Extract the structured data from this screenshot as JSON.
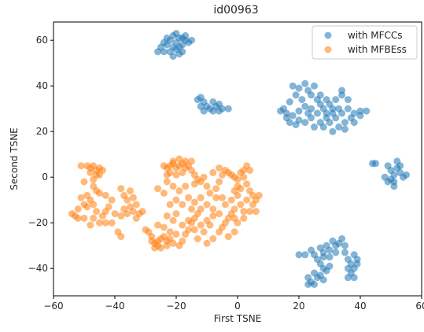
{
  "chart_data": {
    "type": "scatter",
    "title": "id00963",
    "xlabel": "First TSNE",
    "ylabel": "Second TSNE",
    "xlim": [
      -60,
      60
    ],
    "ylim": [
      -52,
      68
    ],
    "xticks": [
      -60,
      -40,
      -20,
      0,
      20,
      40,
      60
    ],
    "xtick_labels": [
      "−60",
      "−40",
      "−20",
      "0",
      "20",
      "40",
      "60"
    ],
    "yticks": [
      -40,
      -20,
      0,
      20,
      40,
      60
    ],
    "ytick_labels": [
      "−40",
      "−20",
      "0",
      "20",
      "40",
      "60"
    ],
    "grid": false,
    "legend_position": "top-right",
    "series": [
      {
        "name": "with MFCCs",
        "color": "#1f77b4",
        "points": [
          [
            -22,
            60
          ],
          [
            -21,
            62
          ],
          [
            -20,
            59
          ],
          [
            -19,
            61
          ],
          [
            -18,
            58
          ],
          [
            -17,
            60
          ],
          [
            -16,
            59
          ],
          [
            -19,
            57
          ],
          [
            -21,
            57
          ],
          [
            -23,
            58
          ],
          [
            -24,
            55
          ],
          [
            -25,
            57
          ],
          [
            -26,
            55
          ],
          [
            -20,
            56
          ],
          [
            -18,
            55
          ],
          [
            -22,
            55
          ],
          [
            -21,
            53
          ],
          [
            -19,
            54
          ],
          [
            -17,
            62
          ],
          [
            -23,
            61
          ],
          [
            -20,
            63
          ],
          [
            -15,
            60
          ],
          [
            -24,
            59
          ],
          [
            -18,
            61
          ],
          [
            -12,
            35
          ],
          [
            -11,
            33
          ],
          [
            -10,
            31
          ],
          [
            -12,
            31
          ],
          [
            -9,
            30
          ],
          [
            -8,
            33
          ],
          [
            -7,
            31
          ],
          [
            -6,
            32
          ],
          [
            -5,
            30
          ],
          [
            -3,
            30
          ],
          [
            -11,
            29
          ],
          [
            -8,
            29
          ],
          [
            -13,
            34
          ],
          [
            -6,
            29
          ],
          [
            18,
            40
          ],
          [
            20,
            39
          ],
          [
            22,
            41
          ],
          [
            23,
            38
          ],
          [
            25,
            40
          ],
          [
            27,
            36
          ],
          [
            19,
            36
          ],
          [
            21,
            34
          ],
          [
            17,
            33
          ],
          [
            15,
            30
          ],
          [
            14,
            29
          ],
          [
            16,
            28
          ],
          [
            18,
            27
          ],
          [
            20,
            25
          ],
          [
            22,
            24
          ],
          [
            17,
            24
          ],
          [
            19,
            23
          ],
          [
            24,
            26
          ],
          [
            26,
            28
          ],
          [
            28,
            30
          ],
          [
            30,
            32
          ],
          [
            32,
            34
          ],
          [
            34,
            36
          ],
          [
            33,
            30
          ],
          [
            31,
            28
          ],
          [
            29,
            26
          ],
          [
            27,
            24
          ],
          [
            25,
            22
          ],
          [
            28,
            22
          ],
          [
            30,
            24
          ],
          [
            32,
            26
          ],
          [
            34,
            28
          ],
          [
            36,
            30
          ],
          [
            38,
            28
          ],
          [
            40,
            29
          ],
          [
            37,
            26
          ],
          [
            35,
            24
          ],
          [
            33,
            22
          ],
          [
            31,
            20
          ],
          [
            35,
            21
          ],
          [
            38,
            24
          ],
          [
            40,
            27
          ],
          [
            42,
            29
          ],
          [
            29,
            34
          ],
          [
            27,
            32
          ],
          [
            24,
            30
          ],
          [
            22,
            31
          ],
          [
            20,
            29
          ],
          [
            16,
            26
          ],
          [
            36,
            34
          ],
          [
            34,
            38
          ],
          [
            24,
            36
          ],
          [
            26,
            34
          ],
          [
            31,
            30
          ],
          [
            23,
            28
          ],
          [
            29,
            28
          ],
          [
            44,
            6
          ],
          [
            45,
            6
          ],
          [
            49,
            5
          ],
          [
            50,
            3
          ],
          [
            51,
            1
          ],
          [
            52,
            4
          ],
          [
            53,
            2
          ],
          [
            54,
            0
          ],
          [
            52,
            7
          ],
          [
            50,
            -1
          ],
          [
            51,
            -4
          ],
          [
            49,
            -2
          ],
          [
            53,
            5
          ],
          [
            55,
            1
          ],
          [
            51,
            -2
          ],
          [
            48,
            0
          ],
          [
            22,
            -34
          ],
          [
            24,
            -32
          ],
          [
            25,
            -34
          ],
          [
            27,
            -31
          ],
          [
            28,
            -33
          ],
          [
            29,
            -30
          ],
          [
            30,
            -32
          ],
          [
            31,
            -28
          ],
          [
            32,
            -30
          ],
          [
            33,
            -29
          ],
          [
            34,
            -27
          ],
          [
            28,
            -35
          ],
          [
            26,
            -36
          ],
          [
            27,
            -38
          ],
          [
            28,
            -40
          ],
          [
            29,
            -41
          ],
          [
            30,
            -39
          ],
          [
            25,
            -42
          ],
          [
            26,
            -44
          ],
          [
            24,
            -46
          ],
          [
            23,
            -44
          ],
          [
            25,
            -47
          ],
          [
            27,
            -43
          ],
          [
            28,
            -45
          ],
          [
            35,
            -33
          ],
          [
            36,
            -36
          ],
          [
            37,
            -38
          ],
          [
            38,
            -34
          ],
          [
            39,
            -36
          ],
          [
            36,
            -40
          ],
          [
            37,
            -42
          ],
          [
            38,
            -40
          ],
          [
            39,
            -38
          ],
          [
            36,
            -44
          ],
          [
            38,
            -44
          ],
          [
            20,
            -34
          ],
          [
            30,
            -35
          ],
          [
            23,
            -47
          ],
          [
            35,
            -30
          ],
          [
            32,
            -33
          ]
        ]
      },
      {
        "name": "with MFBEss",
        "color": "#ff7f0e",
        "points": [
          [
            -49,
            5
          ],
          [
            -48,
            4
          ],
          [
            -47,
            5
          ],
          [
            -46,
            3
          ],
          [
            -45,
            4
          ],
          [
            -48,
            2
          ],
          [
            -46,
            1
          ],
          [
            -47,
            -1
          ],
          [
            -51,
            5
          ],
          [
            -50,
            -2
          ],
          [
            -45,
            1
          ],
          [
            -44,
            3
          ],
          [
            -54,
            -16
          ],
          [
            -53,
            -17
          ],
          [
            -52,
            -14
          ],
          [
            -50,
            -12
          ],
          [
            -49,
            -8
          ],
          [
            -48,
            -10
          ],
          [
            -47,
            -12
          ],
          [
            -46,
            -15
          ],
          [
            -47,
            -18
          ],
          [
            -48,
            -21
          ],
          [
            -45,
            -20
          ],
          [
            -44,
            -17
          ],
          [
            -43,
            -15
          ],
          [
            -42,
            -13
          ],
          [
            -41,
            -10
          ],
          [
            -43,
            -8
          ],
          [
            -45,
            -7
          ],
          [
            -46,
            -6
          ],
          [
            -51,
            -9
          ],
          [
            -49,
            -13
          ],
          [
            -50,
            -18
          ],
          [
            -52,
            -18
          ],
          [
            -43,
            -20
          ],
          [
            -47,
            -4
          ],
          [
            -40,
            -16
          ],
          [
            -41,
            -20
          ],
          [
            -38,
            -5
          ],
          [
            -37,
            -8
          ],
          [
            -36,
            -10
          ],
          [
            -35,
            -13
          ],
          [
            -34,
            -15
          ],
          [
            -33,
            -18
          ],
          [
            -32,
            -16
          ],
          [
            -34,
            -9
          ],
          [
            -36,
            -16
          ],
          [
            -33,
            -12
          ],
          [
            -31,
            -15
          ],
          [
            -37,
            -14
          ],
          [
            -38,
            -17
          ],
          [
            -35,
            -6
          ],
          [
            -39,
            -24
          ],
          [
            -38,
            -26
          ],
          [
            -30,
            -23
          ],
          [
            -29,
            -24
          ],
          [
            -27,
            -29
          ],
          [
            -26,
            -30
          ],
          [
            -28,
            -28
          ],
          [
            -25,
            -27
          ],
          [
            -24,
            -26
          ],
          [
            -23,
            -28
          ],
          [
            -22,
            -27
          ],
          [
            -21,
            -29
          ],
          [
            -23,
            -30
          ],
          [
            -25,
            -31
          ],
          [
            -27,
            -31
          ],
          [
            -26,
            -28
          ],
          [
            -20,
            -25
          ],
          [
            -22,
            -24
          ],
          [
            -24,
            -22
          ],
          [
            -21,
            -19
          ],
          [
            -23,
            -17
          ],
          [
            -26,
            -21
          ],
          [
            -28,
            -26
          ],
          [
            -19,
            -30
          ],
          [
            -18,
            -28
          ],
          [
            -17,
            -25
          ],
          [
            -16,
            -23
          ],
          [
            -15,
            -20
          ],
          [
            -14,
            -18
          ],
          [
            -13,
            -16
          ],
          [
            -12,
            -14
          ],
          [
            -16,
            -19
          ],
          [
            -18,
            -21
          ],
          [
            -20,
            -16
          ],
          [
            -14,
            -23
          ],
          [
            -12,
            -21
          ],
          [
            -10,
            -19
          ],
          [
            -8,
            -17
          ],
          [
            -9,
            -21
          ],
          [
            -11,
            -24
          ],
          [
            -13,
            -27
          ],
          [
            -10,
            -29
          ],
          [
            -8,
            -27
          ],
          [
            -6,
            -24
          ],
          [
            -5,
            -22
          ],
          [
            -4,
            -20
          ],
          [
            -3,
            -18
          ],
          [
            -2,
            -16
          ],
          [
            -1,
            -14
          ],
          [
            -6,
            -16
          ],
          [
            -8,
            -14
          ],
          [
            -4,
            -12
          ],
          [
            -2,
            -10
          ],
          [
            0,
            -8
          ],
          [
            1,
            -12
          ],
          [
            2,
            -15
          ],
          [
            0,
            -20
          ],
          [
            -1,
            -24
          ],
          [
            -3,
            -26
          ],
          [
            -10,
            -12
          ],
          [
            -12,
            -9
          ],
          [
            -14,
            -11
          ],
          [
            -15,
            -14
          ],
          [
            -18,
            -12
          ],
          [
            -20,
            -10
          ],
          [
            -22,
            -12
          ],
          [
            -19,
            -6
          ],
          [
            -21,
            -4
          ],
          [
            -23,
            -2
          ],
          [
            -26,
            -5
          ],
          [
            -24,
            -7
          ],
          [
            -16,
            -9
          ],
          [
            -17,
            -4
          ],
          [
            -23,
            4
          ],
          [
            -22,
            5
          ],
          [
            -21,
            6
          ],
          [
            -20,
            4
          ],
          [
            -19,
            5
          ],
          [
            -18,
            6
          ],
          [
            -17,
            4
          ],
          [
            -16,
            5
          ],
          [
            -15,
            3
          ],
          [
            -14,
            1
          ],
          [
            -13,
            -1
          ],
          [
            -18,
            2
          ],
          [
            -20,
            1
          ],
          [
            -22,
            2
          ],
          [
            -21,
            7
          ],
          [
            -19,
            8
          ],
          [
            -17,
            7
          ],
          [
            -15,
            7
          ],
          [
            -24,
            5
          ],
          [
            -23,
            1
          ],
          [
            -12,
            -2
          ],
          [
            -11,
            0
          ],
          [
            -10,
            -4
          ],
          [
            -9,
            -7
          ],
          [
            -7,
            -5
          ],
          [
            -6,
            -2
          ],
          [
            -5,
            1
          ],
          [
            -4,
            3
          ],
          [
            -3,
            2
          ],
          [
            -2,
            1
          ],
          [
            -1,
            0
          ],
          [
            0,
            -1
          ],
          [
            1,
            2
          ],
          [
            2,
            3
          ],
          [
            3,
            5
          ],
          [
            4,
            3
          ],
          [
            2,
            0
          ],
          [
            0,
            -4
          ],
          [
            -1,
            -6
          ],
          [
            3,
            -3
          ],
          [
            4,
            -6
          ],
          [
            5,
            -8
          ],
          [
            6,
            -10
          ],
          [
            7,
            -8
          ],
          [
            5,
            -12
          ],
          [
            6,
            -15
          ],
          [
            4,
            -15
          ],
          [
            2,
            -18
          ],
          [
            -1,
            -18
          ],
          [
            -5,
            -9
          ],
          [
            -7,
            -9
          ],
          [
            1,
            -5
          ],
          [
            3,
            -10
          ],
          [
            -14,
            -3
          ],
          [
            -8,
            2
          ],
          [
            -6,
            4
          ]
        ]
      }
    ]
  }
}
